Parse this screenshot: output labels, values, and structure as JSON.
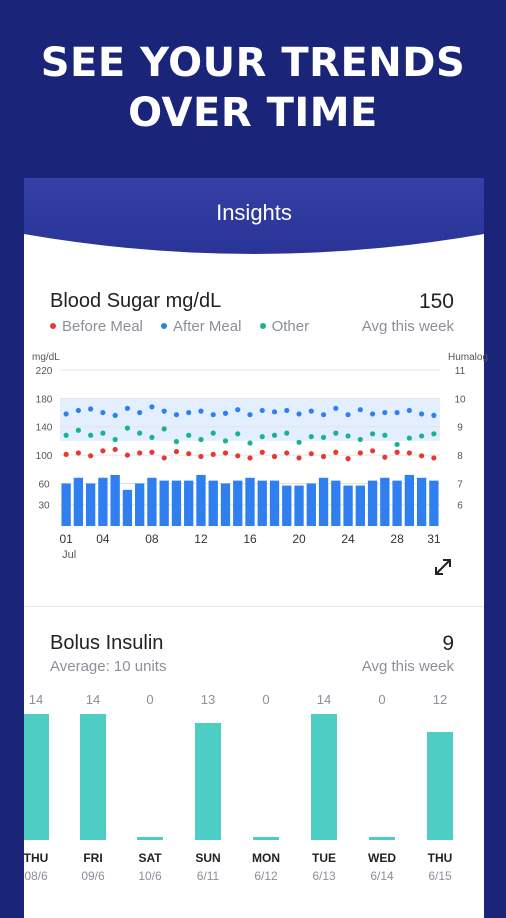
{
  "headline": {
    "line1": "SEE YOUR TRENDS",
    "line2": "OVER TIME"
  },
  "card": {
    "title": "Insights"
  },
  "blood_sugar": {
    "title": "Blood Sugar mg/dL",
    "avg_value": "150",
    "avg_label": "Avg this week",
    "legend": [
      {
        "label": "Before Meal",
        "color": "#e53935"
      },
      {
        "label": "After Meal",
        "color": "#2f7ff0"
      },
      {
        "label": "Other",
        "color": "#1ab38f"
      }
    ],
    "left_axis_title": "mg/dL",
    "right_axis_title": "Humalog",
    "expand_icon": "expand-arrows-icon"
  },
  "bolus": {
    "title": "Bolus Insulin",
    "avg_value": "9",
    "avg_label": "Avg this week",
    "average_text": "Average: 10 units"
  },
  "chart_data": [
    {
      "type": "bar",
      "title": "Blood Sugar mg/dL",
      "xlabel": "Jul",
      "ylabel": "mg/dL",
      "y2label": "Humalog",
      "ylim": [
        0,
        220
      ],
      "y_ticks": [
        "30",
        "60",
        "100",
        "140",
        "180",
        "220"
      ],
      "y2_ticks": [
        "6",
        "7",
        "8",
        "9",
        "10",
        "11"
      ],
      "x_ticks": [
        "01",
        "04",
        "08",
        "12",
        "16",
        "20",
        "24",
        "28",
        "31"
      ],
      "x_sub_label": "Jul",
      "target_band": [
        120,
        180
      ],
      "days": [
        1,
        2,
        3,
        4,
        5,
        6,
        7,
        8,
        9,
        10,
        11,
        12,
        13,
        14,
        15,
        16,
        17,
        18,
        19,
        20,
        21,
        22,
        23,
        24,
        25,
        26,
        27,
        28,
        29,
        30,
        31
      ],
      "series": [
        {
          "name": "Humalog",
          "type": "bar",
          "color": "#2f7ff0",
          "values": [
            7.0,
            7.2,
            7.0,
            7.2,
            7.3,
            6.7,
            7.0,
            7.2,
            7.1,
            7.1,
            7.1,
            7.3,
            7.1,
            7.0,
            7.1,
            7.2,
            7.1,
            7.1,
            6.9,
            6.9,
            7.0,
            7.2,
            7.1,
            6.9,
            6.9,
            7.1,
            7.2,
            7.1,
            7.3,
            7.2,
            7.1
          ]
        },
        {
          "name": "After Meal",
          "type": "scatter",
          "color": "#2f7ff0",
          "values": [
            158,
            163,
            165,
            160,
            156,
            166,
            160,
            168,
            162,
            157,
            160,
            162,
            157,
            159,
            164,
            157,
            163,
            161,
            163,
            158,
            162,
            157,
            166,
            157,
            164,
            158,
            160,
            160,
            163,
            158,
            156
          ]
        },
        {
          "name": "Other",
          "type": "scatter",
          "color": "#1ab38f",
          "values": [
            128,
            135,
            128,
            131,
            122,
            138,
            131,
            125,
            137,
            119,
            128,
            122,
            131,
            120,
            130,
            117,
            126,
            128,
            131,
            118,
            126,
            125,
            131,
            127,
            122,
            130,
            128,
            115,
            124,
            127,
            130
          ]
        },
        {
          "name": "Before Meal",
          "type": "scatter",
          "color": "#e53935",
          "values": [
            101,
            103,
            99,
            106,
            108,
            100,
            103,
            104,
            96,
            105,
            102,
            98,
            101,
            103,
            99,
            96,
            104,
            98,
            103,
            96,
            102,
            98,
            104,
            95,
            103,
            106,
            97,
            104,
            103,
            99,
            96
          ]
        }
      ]
    },
    {
      "type": "bar",
      "title": "Bolus Insulin",
      "categories": [
        "THU",
        "FRI",
        "SAT",
        "SUN",
        "MON",
        "TUE",
        "WED",
        "THU"
      ],
      "dates": [
        "08/6",
        "09/6",
        "10/6",
        "6/11",
        "6/12",
        "6/13",
        "6/14",
        "6/15"
      ],
      "values": [
        14,
        14,
        0,
        13,
        0,
        14,
        0,
        12
      ],
      "color": "#4dcdc4"
    }
  ]
}
